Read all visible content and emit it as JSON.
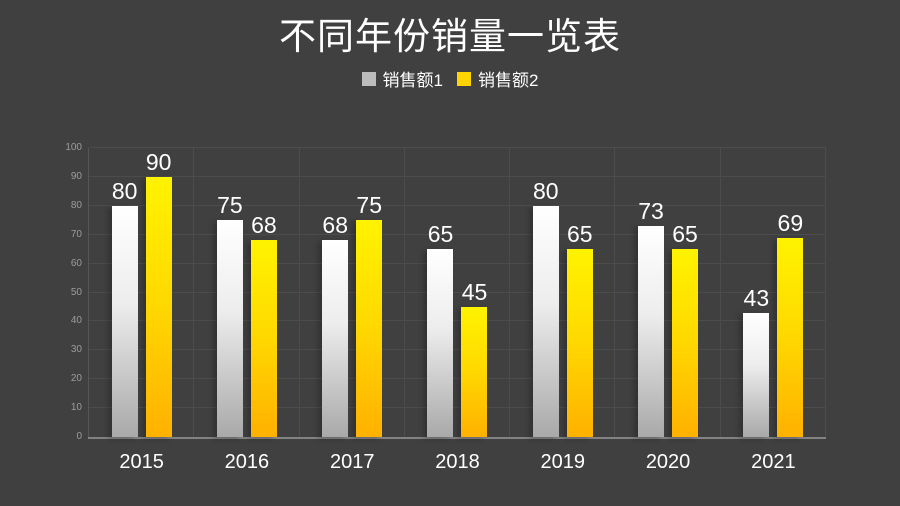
{
  "title": "不同年份销量一览表",
  "legend": {
    "series1_label": "销售额1",
    "series2_label": "销售额2"
  },
  "colors": {
    "background": "#404040",
    "grid": "#4c4c4c",
    "plot_border": "#565656",
    "axis_line": "#828282",
    "tick_label": "#9c9c9c",
    "text": "#ffffff",
    "series1_legend": "#bcbcbc",
    "series2_legend": "#ffd400"
  },
  "chart_data": {
    "type": "bar",
    "title": "不同年份销量一览表",
    "categories": [
      "2015",
      "2016",
      "2017",
      "2018",
      "2019",
      "2020",
      "2021"
    ],
    "series": [
      {
        "name": "销售额1",
        "values": [
          80,
          75,
          68,
          65,
          80,
          73,
          43
        ],
        "gradient": [
          "#ffffff 0%",
          "#ededed 42%",
          "#a9a9a9 100%"
        ]
      },
      {
        "name": "销售额2",
        "values": [
          90,
          68,
          75,
          45,
          65,
          65,
          69
        ],
        "gradient": [
          "#fff300 0%",
          "#ffd900 48%",
          "#ffb100 100%"
        ]
      }
    ],
    "xlabel": "",
    "ylabel": "",
    "ylim": [
      0,
      100
    ],
    "yticks": [
      0,
      10,
      20,
      30,
      40,
      50,
      60,
      70,
      80,
      90,
      100
    ],
    "grid": true,
    "legend_position": "top"
  }
}
